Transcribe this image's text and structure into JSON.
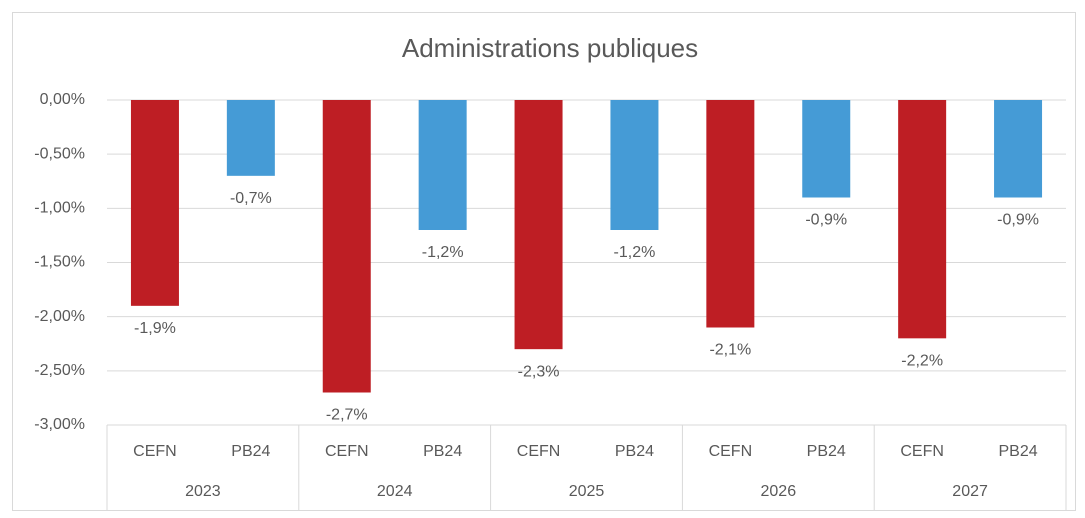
{
  "chart_data": {
    "type": "bar",
    "title": "Administrations publiques",
    "categories": [
      "2023",
      "2024",
      "2025",
      "2026",
      "2027"
    ],
    "series": [
      {
        "name": "CEFN",
        "color": "#be1e24",
        "values": [
          -1.9,
          -2.7,
          -2.3,
          -2.1,
          -2.2
        ],
        "value_labels": [
          "-1,9%",
          "-2,7%",
          "-2,3%",
          "-2,1%",
          "-2,2%"
        ]
      },
      {
        "name": "PB24",
        "color": "#459bd6",
        "values": [
          -0.7,
          -1.2,
          -1.2,
          -0.9,
          -0.9
        ],
        "value_labels": [
          "-0,7%",
          "-1,2%",
          "-1,2%",
          "-0,9%",
          "-0,9%"
        ]
      }
    ],
    "ylim": [
      -3,
      0
    ],
    "yticks": [
      {
        "value": 0,
        "label": "0,00%"
      },
      {
        "value": -0.5,
        "label": "-0,50%"
      },
      {
        "value": -1,
        "label": "-1,00%"
      },
      {
        "value": -1.5,
        "label": "-1,50%"
      },
      {
        "value": -2,
        "label": "-2,00%"
      },
      {
        "value": -2.5,
        "label": "-2,50%"
      },
      {
        "value": -3,
        "label": "-3,00%"
      }
    ],
    "grid": true
  }
}
